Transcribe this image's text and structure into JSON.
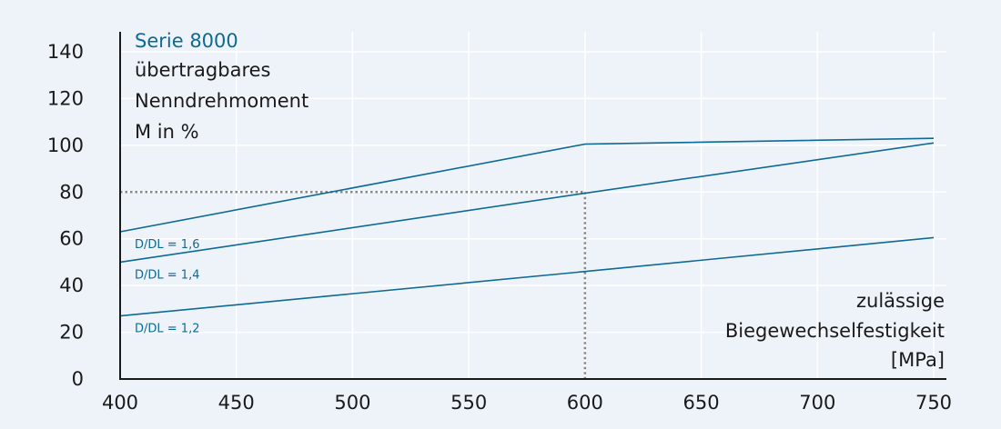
{
  "chart_data": {
    "type": "line",
    "title": "Serie 8000",
    "ylabel_lines": [
      "übertragbares",
      "Nenndrehmoment",
      "M in %"
    ],
    "xlabel_lines": [
      "zulässige",
      "Biegewechselfestigkeit",
      "[MPa]"
    ],
    "x": [
      400,
      600,
      750
    ],
    "xlim": [
      400,
      750
    ],
    "ylim": [
      0,
      140
    ],
    "xticks": [
      "400",
      "450",
      "500",
      "550",
      "600",
      "650",
      "700",
      "750"
    ],
    "yticks": [
      "0",
      "20",
      "40",
      "60",
      "80",
      "100",
      "120",
      "140"
    ],
    "grid": true,
    "series": [
      {
        "name": "D/DL = 1,6",
        "values": [
          63,
          100.5,
          103
        ]
      },
      {
        "name": "D/DL = 1,4",
        "values": [
          50,
          79.5,
          101
        ]
      },
      {
        "name": "D/DL = 1,2",
        "values": [
          27,
          46,
          60.5
        ]
      }
    ],
    "reference": {
      "x": 600,
      "y": 80
    },
    "colors": {
      "line": "#0e6a95",
      "reference": "#888888",
      "grid": "#ffffff",
      "axis": "#1a1a1a",
      "background": "#eef3f9"
    }
  }
}
